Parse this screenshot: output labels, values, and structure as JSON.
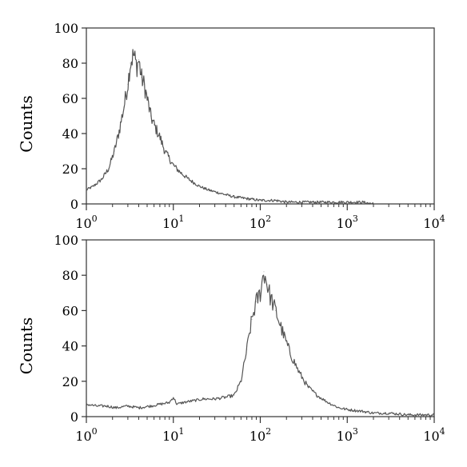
{
  "chart_data": [
    {
      "type": "line",
      "title": "",
      "xlabel": "",
      "ylabel": "Counts",
      "x_scale": "log",
      "xlim": [
        1,
        10000
      ],
      "ylim": [
        0,
        100
      ],
      "x_ticks": [
        {
          "value": 1,
          "base": "10",
          "exp": "0"
        },
        {
          "value": 10,
          "base": "10",
          "exp": "1"
        },
        {
          "value": 100,
          "base": "10",
          "exp": "2"
        },
        {
          "value": 1000,
          "base": "10",
          "exp": "3"
        },
        {
          "value": 10000,
          "base": "10",
          "exp": "4"
        }
      ],
      "y_ticks": [
        "0",
        "20",
        "40",
        "60",
        "80",
        "100"
      ],
      "grid": false,
      "legend": "none",
      "line_color": "#555555",
      "series": [
        {
          "x": [
            1.0,
            1.2,
            1.5,
            1.8,
            2.1,
            2.4,
            2.7,
            3.0,
            3.2,
            3.5,
            3.8,
            4.0,
            4.3,
            4.6,
            5.0,
            5.5,
            6.0,
            7.0,
            8.0,
            10.0,
            12.0,
            15.0,
            20.0,
            25.0,
            35.0,
            50.0,
            70.0,
            100.0,
            150.0,
            200.0,
            300.0,
            500.0,
            800.0,
            1500.0,
            2000.0
          ],
          "y": [
            8,
            10,
            14,
            20,
            30,
            42,
            55,
            68,
            80,
            85,
            78,
            82,
            72,
            68,
            60,
            50,
            45,
            38,
            30,
            22,
            18,
            14,
            10,
            8,
            6,
            4,
            3,
            2,
            2,
            1,
            1,
            1,
            1,
            1,
            0
          ]
        }
      ]
    },
    {
      "type": "line",
      "title": "",
      "xlabel": "",
      "ylabel": "Counts",
      "x_scale": "log",
      "xlim": [
        1,
        10000
      ],
      "ylim": [
        0,
        100
      ],
      "x_ticks": [
        {
          "value": 1,
          "base": "10",
          "exp": "0"
        },
        {
          "value": 10,
          "base": "10",
          "exp": "1"
        },
        {
          "value": 100,
          "base": "10",
          "exp": "2"
        },
        {
          "value": 1000,
          "base": "10",
          "exp": "3"
        },
        {
          "value": 10000,
          "base": "10",
          "exp": "4"
        }
      ],
      "y_ticks": [
        "0",
        "20",
        "40",
        "60",
        "80",
        "100"
      ],
      "grid": false,
      "legend": "none",
      "line_color": "#555555",
      "series": [
        {
          "x": [
            1.0,
            1.3,
            1.7,
            2.2,
            3.0,
            4.0,
            5.5,
            7.0,
            9.0,
            10.0,
            11.0,
            13.0,
            17.0,
            22.0,
            30.0,
            40.0,
            50.0,
            60.0,
            70.0,
            80.0,
            90.0,
            100.0,
            110.0,
            120.0,
            130.0,
            150.0,
            180.0,
            220.0,
            280.0,
            350.0,
            450.0,
            600.0,
            800.0,
            1000.0,
            1500.0,
            2000.0,
            3000.0,
            5000.0,
            10000.0
          ],
          "y": [
            7,
            6,
            6,
            5,
            6,
            5,
            6,
            7,
            8,
            11,
            7,
            8,
            9,
            10,
            10,
            11,
            12,
            20,
            38,
            55,
            65,
            70,
            82,
            75,
            68,
            60,
            48,
            36,
            25,
            17,
            12,
            8,
            5,
            4,
            3,
            2,
            2,
            1,
            1
          ]
        }
      ]
    }
  ]
}
